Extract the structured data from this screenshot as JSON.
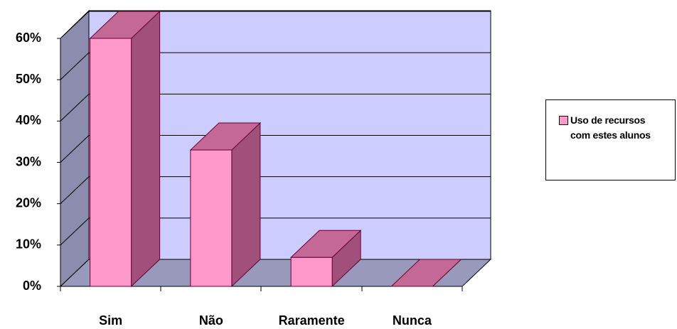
{
  "chart_data": {
    "type": "bar3d",
    "categories": [
      "Sim",
      "Não",
      "Raramente",
      "Nunca"
    ],
    "series": [
      {
        "name": "Uso de recursos com estes alunos",
        "color": "#ff99cc",
        "values": [
          60,
          33,
          7,
          0
        ]
      }
    ],
    "ylim": [
      0,
      60
    ],
    "yticks": [
      {
        "value": 0,
        "label": "0%"
      },
      {
        "value": 10,
        "label": "10%"
      },
      {
        "value": 20,
        "label": "20%"
      },
      {
        "value": 30,
        "label": "30%"
      },
      {
        "value": 40,
        "label": "40%"
      },
      {
        "value": 50,
        "label": "50%"
      },
      {
        "value": 60,
        "label": "60%"
      }
    ],
    "grid": true,
    "legend": "right"
  }
}
